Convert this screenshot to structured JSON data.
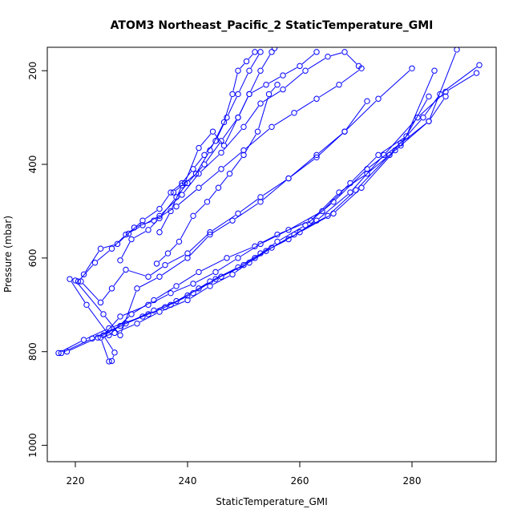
{
  "chart_data": {
    "type": "line",
    "title": "ATOM3 Northeast_Pacific_2 StaticTemperature_GMI",
    "xlabel": "StaticTemperature_GMI",
    "ylabel": "Pressure (mbar)",
    "xlim": [
      215,
      295
    ],
    "ylim": [
      1035,
      150
    ],
    "y_reversed": true,
    "x_ticks": [
      220,
      240,
      260,
      280
    ],
    "y_ticks": [
      200,
      400,
      600,
      800,
      1000
    ],
    "grid": false,
    "color": "#0000ff",
    "marker": "open-circle",
    "series": [
      {
        "x": [
          217.0,
          221.5,
          226.0,
          232.0,
          236.0,
          240.0,
          244.0,
          249.0,
          253.0,
          258.0,
          263.0,
          269.0,
          275.0,
          281.0,
          286.0,
          291.5
        ],
        "y": [
          803,
          775,
          750,
          725,
          705,
          680,
          650,
          620,
          590,
          560,
          520,
          460,
          380,
          300,
          245,
          205
        ]
      },
      {
        "x": [
          217.5,
          223.0,
          228.0,
          233.0,
          237.0,
          241.0,
          245.0,
          250.0,
          254.0,
          259.0,
          265.0,
          270.0,
          276.0,
          282.0,
          285.0,
          292.0
        ],
        "y": [
          803,
          772,
          745,
          720,
          700,
          675,
          645,
          615,
          585,
          550,
          510,
          455,
          380,
          300,
          250,
          188
        ]
      },
      {
        "x": [
          218.5,
          224.0,
          229.0,
          234.0,
          238.0,
          242.0,
          246.0,
          251.0,
          255.0,
          260.0,
          266.0,
          271.0,
          277.0,
          283.0,
          286.0
        ],
        "y": [
          800,
          770,
          740,
          712,
          692,
          665,
          640,
          610,
          578,
          545,
          505,
          450,
          370,
          308,
          255
        ]
      },
      {
        "x": [
          226.0,
          224.5,
          227.0,
          231.0,
          235.0,
          240.0,
          244.0,
          248.0,
          252.0,
          256.0,
          261.0,
          266.0,
          272.0,
          278.0,
          283.0,
          288.0
        ],
        "y": [
          821,
          770,
          760,
          740,
          715,
          690,
          660,
          635,
          600,
          565,
          530,
          480,
          410,
          355,
          308,
          155
        ]
      },
      {
        "x": [
          226.5,
          227.0,
          225.0,
          228.0,
          233.0,
          237.0,
          241.0,
          245.0,
          249.0,
          253.0,
          258.0,
          264.0,
          269.0,
          274.0,
          279.0,
          284.0
        ],
        "y": [
          820,
          802,
          765,
          725,
          700,
          675,
          655,
          630,
          600,
          570,
          540,
          500,
          440,
          380,
          340,
          200
        ]
      },
      {
        "x": [
          219.0,
          222.0,
          226.0,
          230.0,
          234.0,
          238.0,
          242.0,
          247.0,
          252.0,
          256.0,
          262.0,
          267.0,
          272.0,
          278.0,
          283.0
        ],
        "y": [
          645,
          700,
          765,
          720,
          690,
          660,
          630,
          600,
          575,
          550,
          520,
          460,
          420,
          360,
          255
        ]
      },
      {
        "x": [
          220.0,
          225.0,
          228.0,
          231.0,
          235.0,
          240.0,
          244.0,
          248.0,
          253.0,
          258.0,
          263.0,
          268.0,
          274.0,
          280.0
        ],
        "y": [
          648,
          720,
          765,
          665,
          640,
          600,
          550,
          520,
          480,
          430,
          380,
          330,
          260,
          195
        ]
      },
      {
        "x": [
          221.0,
          224.5,
          226.5,
          229.0,
          233.0,
          236.0,
          240.0,
          244.0,
          249.0,
          253.0,
          258.0,
          263.0,
          268.0,
          272.0
        ],
        "y": [
          650,
          695,
          665,
          625,
          640,
          615,
          590,
          545,
          505,
          470,
          430,
          385,
          330,
          265
        ]
      },
      {
        "x": [
          221.5,
          224.5,
          227.5,
          230.5,
          234.0,
          238.0,
          242.0,
          246.0,
          250.0,
          255.0,
          259.0,
          263.0,
          267.0,
          271.0
        ],
        "y": [
          635,
          580,
          570,
          535,
          520,
          490,
          450,
          410,
          370,
          320,
          290,
          260,
          230,
          195
        ]
      },
      {
        "x": [
          220.5,
          223.5,
          226.5,
          229.0,
          232.0,
          235.0,
          239.0,
          242.0,
          246.0,
          250.0,
          253.0,
          257.0,
          261.0,
          265.0,
          268.0,
          270.5
        ],
        "y": [
          650,
          610,
          580,
          550,
          530,
          510,
          465,
          420,
          375,
          320,
          270,
          240,
          200,
          170,
          160,
          190
        ]
      },
      {
        "x": [
          228.0,
          230.0,
          233.0,
          235.0,
          238.0,
          240.0,
          243.0,
          246.0,
          249.0,
          251.0,
          254.0,
          257.0,
          260.0,
          263.0
        ],
        "y": [
          605,
          560,
          540,
          515,
          470,
          440,
          400,
          350,
          300,
          250,
          230,
          210,
          190,
          160
        ]
      },
      {
        "x": [
          229.5,
          232.0,
          235.0,
          237.0,
          239.0,
          241.0,
          243.0,
          245.0,
          247.0,
          249.0,
          251.0,
          253.0
        ],
        "y": [
          548,
          520,
          495,
          460,
          440,
          410,
          380,
          350,
          300,
          250,
          200,
          160
        ]
      },
      {
        "x": [
          235.0,
          237.0,
          239.0,
          241.5,
          244.0,
          246.5,
          248.0,
          249.0,
          250.5,
          252.0
        ],
        "y": [
          545,
          500,
          445,
          420,
          370,
          310,
          250,
          200,
          180,
          160
        ]
      },
      {
        "x": [
          237.5,
          239.5,
          242.0,
          244.5,
          246.5,
          249.0,
          251.0,
          253.0,
          255.0,
          255.5
        ],
        "y": [
          460,
          440,
          365,
          330,
          360,
          300,
          250,
          200,
          160,
          152
        ]
      },
      {
        "x": [
          234.5,
          236.5,
          238.5,
          241.0,
          243.5,
          245.5,
          247.5,
          250.0,
          252.5,
          254.5,
          256.0
        ],
        "y": [
          612,
          590,
          565,
          510,
          480,
          450,
          420,
          380,
          330,
          250,
          230
        ]
      }
    ]
  }
}
